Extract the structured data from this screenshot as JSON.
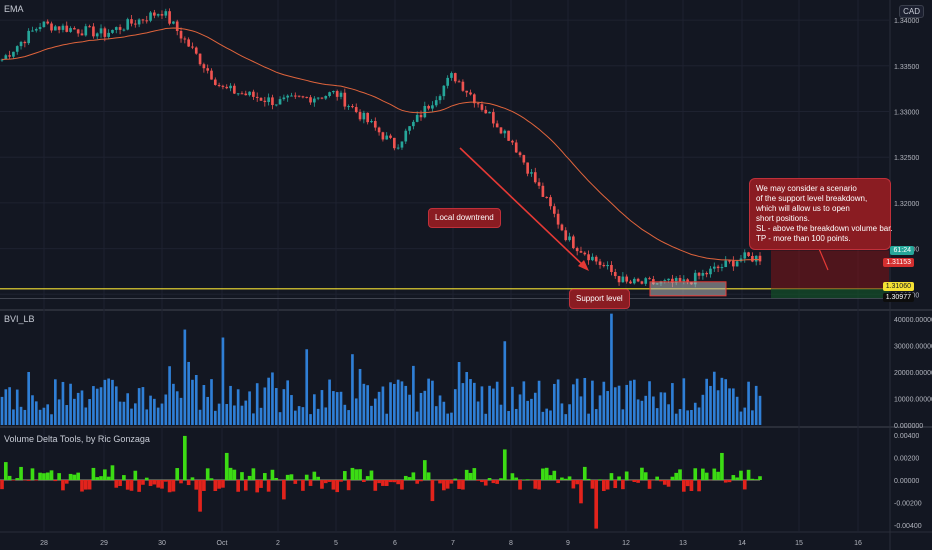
{
  "header": {
    "indicator": "EMA",
    "currency": "CAD"
  },
  "panes": {
    "bvi": {
      "label": "BVI_LB"
    },
    "vdt": {
      "label": "Volume Delta Tools, by Ric Gonzaga"
    }
  },
  "price_tags": {
    "current_top": "61:24",
    "current_price": "1.31153",
    "support": "1.31060",
    "low": "1.30977"
  },
  "annotations": {
    "downtrend": "Local downtrend",
    "support": "Support level",
    "note_lines": [
      "We may consider a scenario",
      "of the support level breakdown,",
      "which will allow us to open",
      "short positions.",
      "SL - above the breakdown volume bar.",
      "TP - more than 100 points."
    ]
  },
  "colors": {
    "up": "#26a69a",
    "down": "#ef5350",
    "ema": "#e0643c",
    "support_line": "#f5e133",
    "volume": "#2f7fd6",
    "delta_up": "#3cdc14",
    "delta_down": "#e3231c"
  },
  "chart_data": [
    {
      "type": "candlestick",
      "title": "",
      "overlay": "EMA",
      "x": [
        "28",
        "29",
        "30",
        "Oct",
        "2",
        "5",
        "6",
        "7",
        "8",
        "9",
        "12",
        "13",
        "14",
        "15",
        "16"
      ],
      "y_ticks": [
        "1.34000",
        "1.33500",
        "1.33000",
        "1.32500",
        "1.32000",
        "1.31500",
        "1.31000"
      ],
      "ylim": [
        1.3085,
        1.3422
      ],
      "close_path": [
        {
          "x": "28",
          "y": 1.3395
        },
        {
          "x": "29",
          "y": 1.3385
        },
        {
          "x": "30",
          "y": 1.341
        },
        {
          "x": "Oct",
          "y": 1.3325
        },
        {
          "x": "2",
          "y": 1.331
        },
        {
          "x": "5",
          "y": 1.332
        },
        {
          "x": "6",
          "y": 1.3262
        },
        {
          "x": "7",
          "y": 1.334
        },
        {
          "x": "8",
          "y": 1.327
        },
        {
          "x": "9",
          "y": 1.316
        },
        {
          "x": "12",
          "y": 1.3112
        },
        {
          "x": "13",
          "y": 1.3112
        },
        {
          "x": "14",
          "y": 1.314
        }
      ],
      "support_level": 1.3106,
      "last_price": 1.31153
    },
    {
      "type": "bar",
      "series": [
        {
          "name": "BVI_LB",
          "values_approx_range": [
            2000,
            42000
          ]
        }
      ],
      "y_ticks": [
        "40000.000000",
        "30000.000000",
        "20000.000000",
        "10000.000000",
        "0.000000"
      ],
      "ylim": [
        0,
        43000
      ]
    },
    {
      "type": "area",
      "series": [
        {
          "name": "Volume Delta Tools, by Ric Gonzaga"
        }
      ],
      "y_ticks": [
        "0.00400",
        "0.00200",
        "0.00000",
        "-0.00200",
        "-0.00400"
      ],
      "ylim": [
        -0.0046,
        0.0046
      ]
    }
  ]
}
